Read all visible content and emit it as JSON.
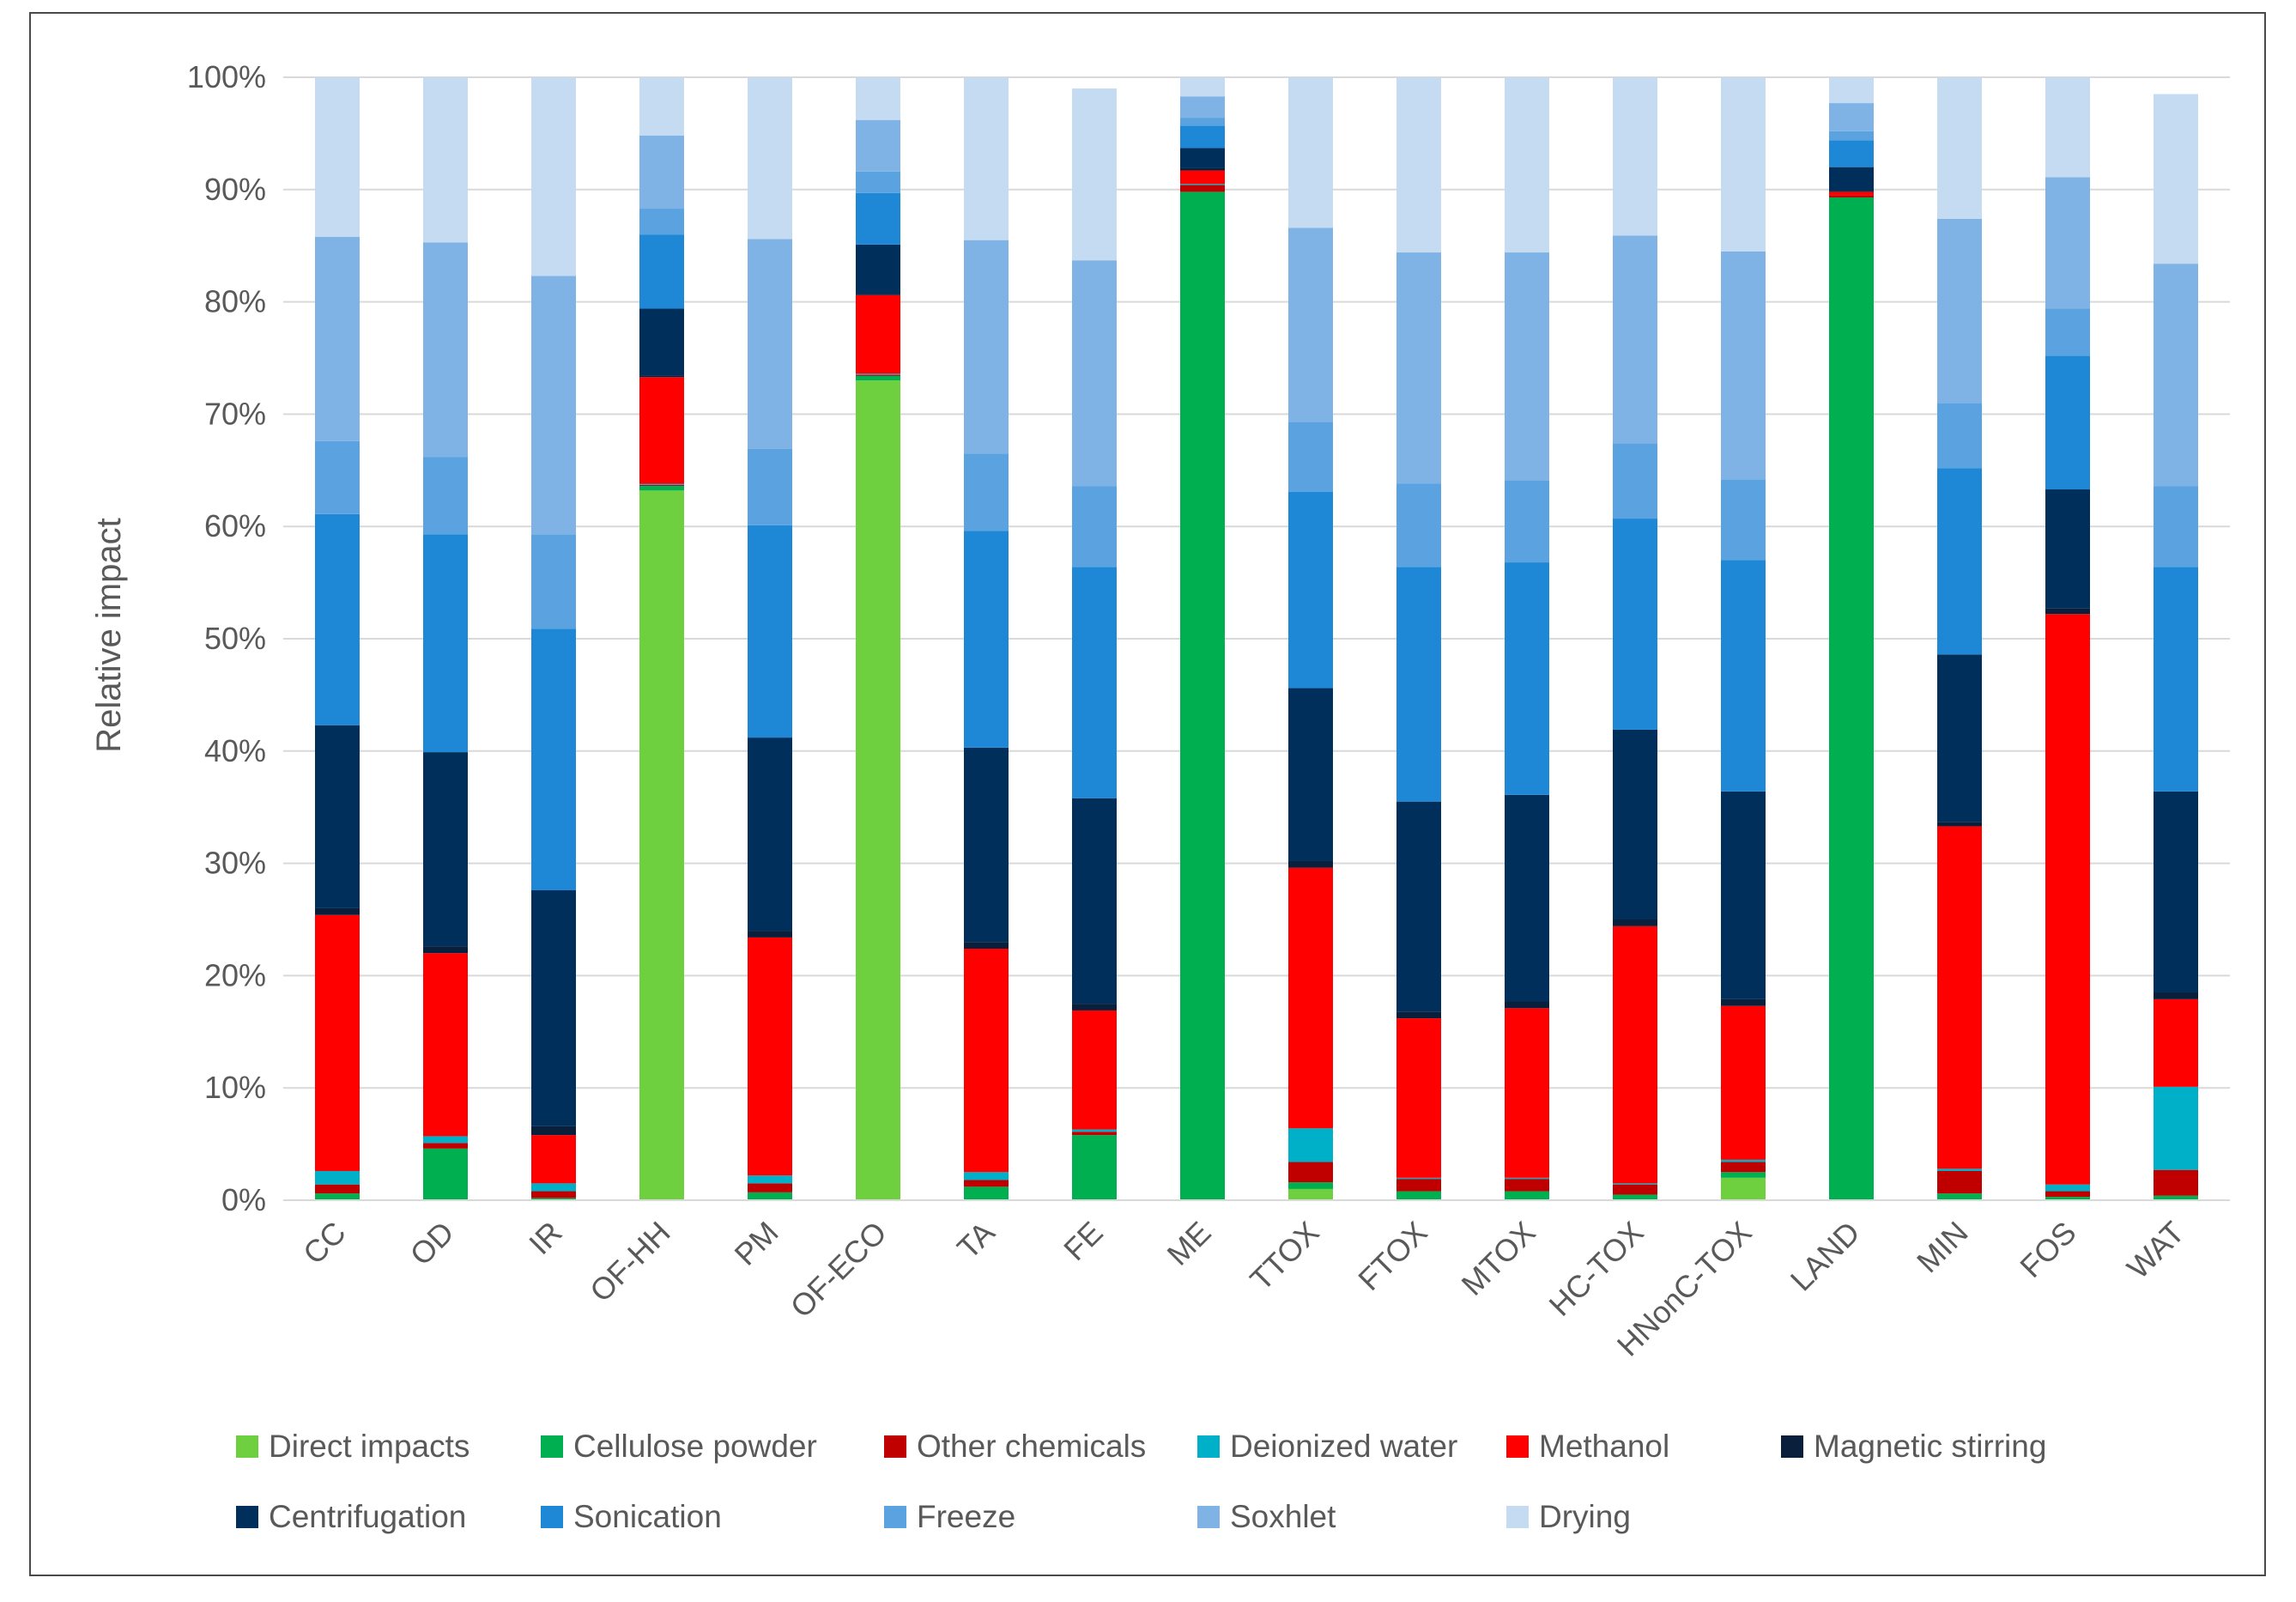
{
  "chart_data": {
    "type": "stacked-bar-100",
    "ylabel": "Relative impact",
    "xlabel": "",
    "ylim": [
      0,
      100
    ],
    "yticks": [
      "0%",
      "10%",
      "20%",
      "30%",
      "40%",
      "50%",
      "60%",
      "70%",
      "80%",
      "90%",
      "100%"
    ],
    "grid": true,
    "legend_position": "bottom",
    "categories": [
      "CC",
      "OD",
      "IR",
      "OF-HH",
      "PM",
      "OF-ECO",
      "TA",
      "FE",
      "ME",
      "TTOX",
      "FTOX",
      "MTOX",
      "HC-TOX",
      "HNonC-TOX",
      "LAND",
      "MIN",
      "FOS",
      "WAT"
    ],
    "series": [
      {
        "name": "Direct impacts",
        "color": "#6ecf3f",
        "values": [
          0,
          0,
          0,
          63.2,
          0,
          73.0,
          0,
          0,
          0,
          1.0,
          0,
          0,
          0,
          2.0,
          0,
          0,
          0,
          0
        ]
      },
      {
        "name": "Cellulose powder",
        "color": "#00b050",
        "values": [
          0.6,
          4.6,
          0.2,
          0.4,
          0.7,
          0.4,
          1.2,
          5.8,
          89.8,
          0.6,
          0.8,
          0.8,
          0.5,
          0.5,
          89.3,
          0.6,
          0.3,
          0.4
        ]
      },
      {
        "name": "Other chemicals",
        "color": "#c00000",
        "values": [
          0.8,
          0.5,
          0.6,
          0.1,
          0.8,
          0.1,
          0.6,
          0.3,
          0.6,
          1.8,
          1.1,
          1.1,
          0.9,
          0.9,
          0.2,
          2.0,
          0.5,
          2.3
        ]
      },
      {
        "name": "Deionized water",
        "color": "#00b0c8",
        "values": [
          1.2,
          0.6,
          0.7,
          0.1,
          0.7,
          0.1,
          0.7,
          0.2,
          0.1,
          3.0,
          0.1,
          0.1,
          0.1,
          0.2,
          0.0,
          0.2,
          0.6,
          7.4
        ]
      },
      {
        "name": "Methanol",
        "color": "#ff0000",
        "values": [
          22.8,
          16.3,
          4.3,
          9.5,
          21.2,
          7.0,
          19.9,
          10.6,
          1.2,
          23.2,
          14.2,
          15.1,
          22.9,
          13.7,
          0.3,
          30.5,
          50.8,
          7.8
        ]
      },
      {
        "name": "Magnetic stirring",
        "color": "#0a1f3c",
        "values": [
          0.6,
          0.6,
          0.8,
          0.1,
          0.6,
          0.1,
          0.6,
          0.6,
          0.2,
          0.6,
          0.6,
          0.6,
          0.6,
          0.6,
          0.1,
          0.4,
          0.5,
          0.6
        ]
      },
      {
        "name": "Centrifugation",
        "color": "#002f5c",
        "values": [
          16.3,
          17.3,
          21.0,
          6.0,
          17.2,
          4.4,
          17.3,
          18.3,
          1.8,
          15.4,
          18.7,
          18.4,
          16.9,
          18.5,
          2.1,
          14.9,
          10.6,
          17.9
        ]
      },
      {
        "name": "Sonication",
        "color": "#1f88d6",
        "values": [
          18.8,
          19.4,
          23.3,
          6.6,
          18.9,
          4.6,
          19.3,
          20.6,
          2.0,
          17.5,
          20.9,
          20.7,
          18.8,
          20.6,
          2.4,
          16.6,
          11.9,
          20.0
        ]
      },
      {
        "name": "Freeze",
        "color": "#5ba3e0",
        "values": [
          6.5,
          6.9,
          8.4,
          2.3,
          6.8,
          1.9,
          6.9,
          7.2,
          0.7,
          6.2,
          7.4,
          7.3,
          6.7,
          7.2,
          0.8,
          5.8,
          4.2,
          7.2
        ]
      },
      {
        "name": "Soxhlet",
        "color": "#7fb3e6",
        "values": [
          18.2,
          19.1,
          23.0,
          6.5,
          18.7,
          4.6,
          19.0,
          20.1,
          1.9,
          17.3,
          20.6,
          20.3,
          18.5,
          20.3,
          2.5,
          16.4,
          11.7,
          19.8
        ]
      },
      {
        "name": "Drying",
        "color": "#c5dbf2",
        "values": [
          14.2,
          14.7,
          17.7,
          5.2,
          14.4,
          3.8,
          14.5,
          15.3,
          1.7,
          13.4,
          15.6,
          15.6,
          14.1,
          15.5,
          2.3,
          12.6,
          8.9,
          15.1
        ]
      }
    ]
  }
}
